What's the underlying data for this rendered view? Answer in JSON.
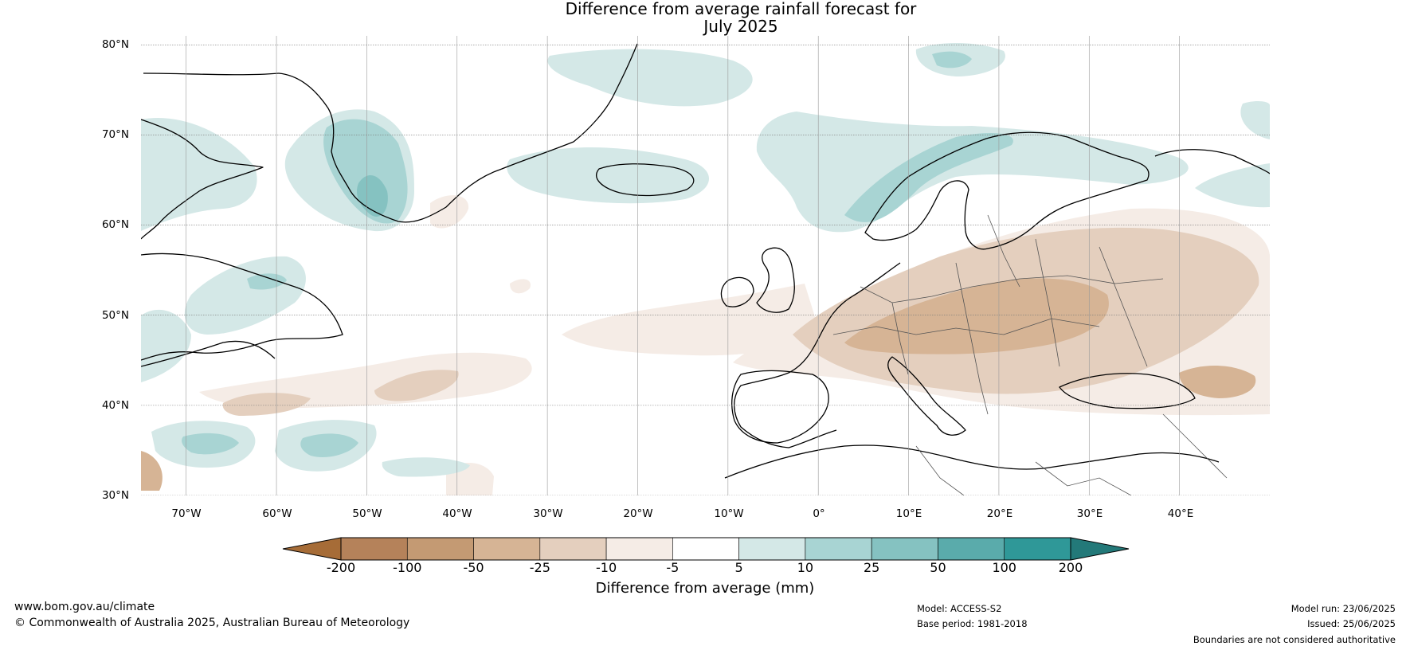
{
  "title": {
    "line1": "Difference from average rainfall forecast for",
    "line2": "July 2025"
  },
  "map": {
    "lat_ticks": [
      "80°N",
      "70°N",
      "60°N",
      "50°N",
      "40°N",
      "30°N"
    ],
    "lon_ticks": [
      "70°W",
      "60°W",
      "50°W",
      "40°W",
      "30°W",
      "20°W",
      "10°W",
      "0°",
      "10°E",
      "20°E",
      "30°E",
      "40°E"
    ],
    "lat_range": [
      30,
      81
    ],
    "lon_range": [
      -75,
      50
    ],
    "grid": true,
    "projection": "equirectangular",
    "colors": {
      "brown_3": "#c49a73",
      "brown_2": "#d6b495",
      "brown_1": "#e4cfbe",
      "brown_0": "#f5ece6",
      "teal_1": "#d4e8e7",
      "teal_2": "#a8d4d3",
      "teal_3": "#85c2c1"
    }
  },
  "colorbar": {
    "label": "Difference from average (mm)",
    "ticks": [
      "-200",
      "-100",
      "-50",
      "-25",
      "-10",
      "-5",
      "5",
      "10",
      "25",
      "50",
      "100",
      "200"
    ],
    "segment_colors": [
      "#a66c37",
      "#b5825a",
      "#c49a73",
      "#d6b495",
      "#e4cfbe",
      "#f5ece6",
      "#ffffff",
      "#d4e8e7",
      "#a8d4d3",
      "#85c2c1",
      "#5aabab",
      "#2f9898"
    ],
    "extend_low_color": "#8b5a2b",
    "extend_high_color": "#237979"
  },
  "footer": {
    "website": "www.bom.gov.au/climate",
    "copyright": "© Commonwealth of Australia 2025, Australian Bureau of Meteorology",
    "model": "Model: ACCESS-S2",
    "base_period": "Base period: 1981-2018",
    "model_run": "Model run: 23/06/2025",
    "issued": "Issued: 25/06/2025",
    "disclaimer": "Boundaries are not considered authoritative"
  }
}
